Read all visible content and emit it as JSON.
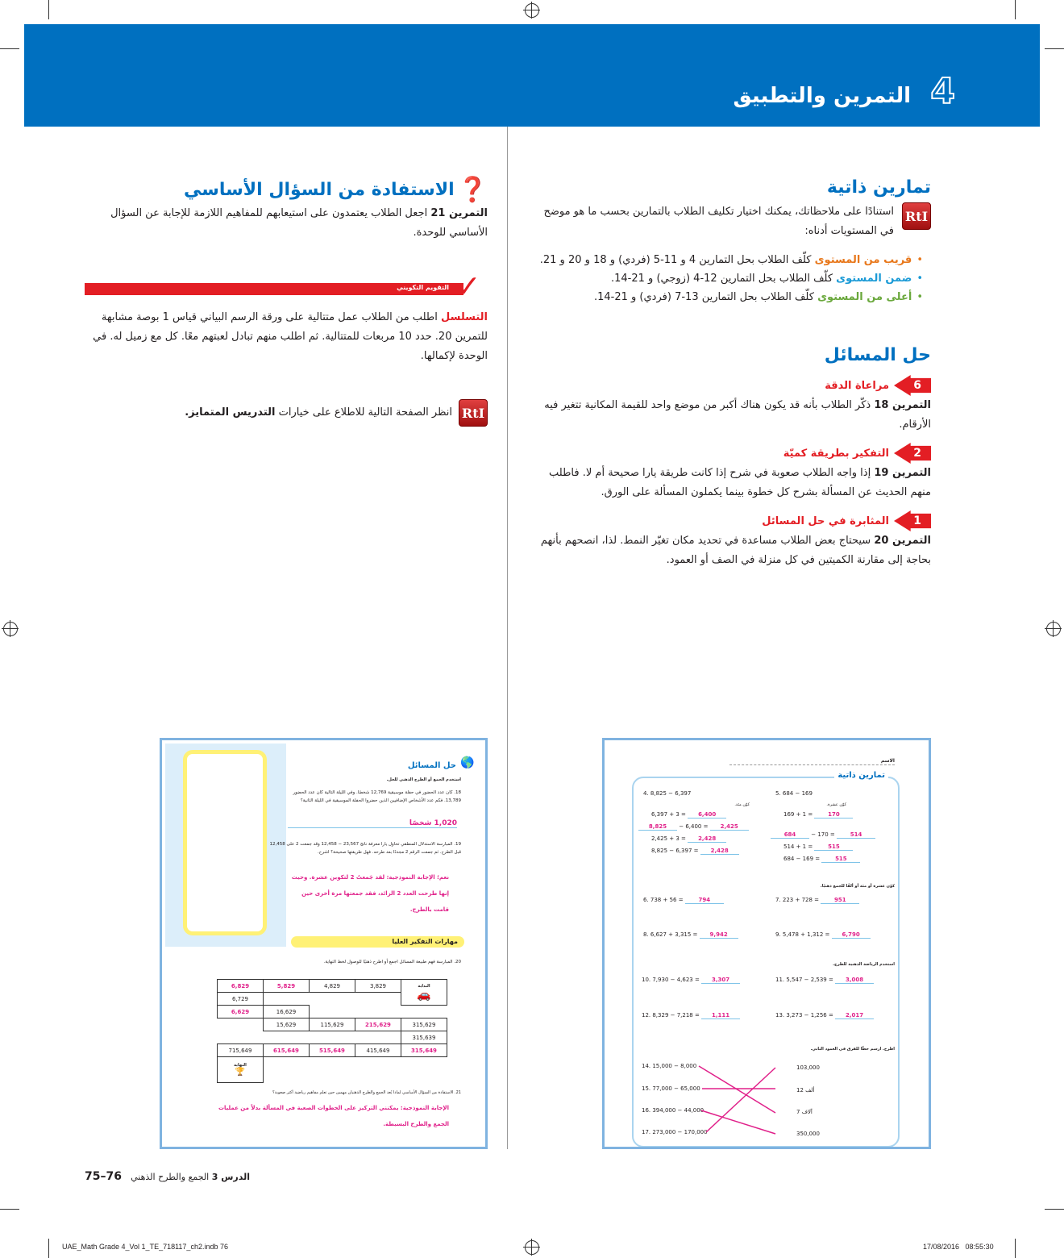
{
  "header": {
    "chapter_number": "4",
    "chapter_title": "التمرين والتطبيق"
  },
  "right": {
    "practice": {
      "title": "تمارين ذاتية",
      "rti": "RtI",
      "intro": "استنادًا على ملاحظاتك، يمكنك اختيار تكليف الطلاب بالتمارين بحسب ما هو موضح في المستويات أدناه:",
      "levels": [
        {
          "label": "قريب من المستوى",
          "text": "كلّف الطلاب بحل التمارين 4 و 11-5 (فردي) و 18 و 20 و 21.",
          "color": "#e8781c"
        },
        {
          "label": "ضمن المستوى",
          "text": "كلّف الطلاب بحل التمارين 12-4 (زوجي) و 21-14.",
          "color": "#1a9ad6"
        },
        {
          "label": "أعلى من المستوى",
          "text": "كلّف الطلاب بحل التمارين 13-7 (فردي) و 21-14.",
          "color": "#6aa83c"
        }
      ]
    },
    "problem_solving": {
      "title": "حل المسائل",
      "items": [
        {
          "num": "6",
          "heading": "مراعاة الدقة",
          "lead": "التمرين 18",
          "text": "ذكّر الطلاب بأنه قد يكون هناك أكبر من موضع واحد للقيمة المكانية تتغير فيه الأرقام."
        },
        {
          "num": "2",
          "heading": "التفكير بطريقة كميّة",
          "lead": "التمرين 19",
          "text": "إذا واجه الطلاب صعوبة في شرح إذا كانت طريقة يارا صحيحة أم لا. فاطلب منهم الحديث عن المسألة بشرح كل خطوة بينما يكملون المسألة على الورق."
        },
        {
          "num": "1",
          "heading": "المثابرة في حل المسائل",
          "lead": "التمرين 20",
          "text": "سيحتاج بعض الطلاب مساعدة في تحديد مكان تغيّر النمط. لذا، انصحهم بأنهم بحاجة إلى مقارنة الكميتين في كل منزلة في الصف أو العمود."
        }
      ]
    }
  },
  "left": {
    "essential": {
      "title": "الاستفادة من السؤال الأساسي",
      "lead": "التمرين 21",
      "text": "اجعل الطلاب يعتمدون على استيعابهم للمفاهيم اللازمة للإجابة عن السؤال الأساسي للوحدة."
    },
    "formative": {
      "banner": "التقويم التكويني",
      "lead": "التسلسل",
      "text": "اطلب من الطلاب عمل متتالية على ورقة الرسم البياني قياس 1 بوصة مشابهة للتمرين 20. حدد 10 مربعات للمتتالية. ثم اطلب منهم تبادل لعبتهم معًا. كل مع زميل له. في الوحدة لإكمالها."
    },
    "rti_note": {
      "rti": "RtI",
      "text": "انظر الصفحة التالية للاطلاع على خيارات",
      "bold": "التدريس المتمايز."
    }
  },
  "thumb_right": {
    "name_label": "الاسم",
    "title": "تمارين ذاتية",
    "p4": "4. 8,825 − 6,397",
    "p4_hint": "كوّن مئة.",
    "p4_rows": [
      [
        "6,397 + 3 =",
        "6,400"
      ],
      [
        "− 6,400 =",
        "8,825",
        "2,425"
      ],
      [
        "2,425 + 3 =",
        "2,428"
      ],
      [
        "8,825 − 6,397 =",
        "2,428"
      ]
    ],
    "p5": "5. 684 − 169",
    "p5_hint": "كوّن عشرة.",
    "p5_rows": [
      [
        "169 + 1 =",
        "170"
      ],
      [
        "− 170 =",
        "684",
        "514"
      ],
      [
        "514 + 1 =",
        "515"
      ],
      [
        "684 − 169 =",
        "515"
      ]
    ],
    "mental_hint": "كوّن عشرة أو مئة أو ألفًا للجمع ذهنيًا.",
    "sums": [
      [
        "6. 738 + 56 =",
        "794"
      ],
      [
        "7. 223 + 728 =",
        "951"
      ],
      [
        "8. 6,627 + 3,315 =",
        "9,942"
      ],
      [
        "9. 5,478 + 1,312 =",
        "6,790"
      ]
    ],
    "sub_hint": "استخدم الرياضة الذهنية للطرح.",
    "subs": [
      [
        "10. 7,930 − 4,623 =",
        "3,307"
      ],
      [
        "11. 5,547 − 2,539 =",
        "3,008"
      ],
      [
        "12. 8,329 − 7,218 =",
        "1,111"
      ],
      [
        "13. 3,273 − 1,256 =",
        "2,017"
      ]
    ],
    "match_hint": "اطرح. ارسم خطًا للفرق في العمود الثاني.",
    "match_left": [
      "14. 15,000 − 8,000",
      "15. 77,000 − 65,000",
      "16. 394,000 − 44,000",
      "17. 273,000 − 170,000"
    ],
    "match_right": [
      "103,000",
      "12 ألف",
      "7 آلاف",
      "350,000"
    ]
  },
  "thumb_left": {
    "title": "حل المسائل",
    "instr": "استخدم الجمع أو الطرح الذهني للحل.",
    "q18": "18. كان عدد الحضور في حفلة موسيقية 12,769 شخصًا. وفي الليلة التالية كان عدد الحضور 13,789. فكم عدد الأشخاص الإضافيين الذين حضروا الحفلة الموسيقية في الليلة الثانية؟",
    "a18": "1,020 شخصًا",
    "q19": "19. المبارسة الاستدلال المنطقي تحاول يارا معرفة ناتج 23,567 − 12,458 وقد جمعت 2 على 12,458 قبل الطرح. ثم جمعت الرقم 2 مجددًا بعد طرحه. فهل طريقتها صحيحة؟ اشرح.",
    "a19": "نعم؛ الإجابة النموذجية: لقد جَمعتُ 2 لتكوين عشرة. وحيث إنها طرحت العدد 2 الزائد، فقد جمعتها مرة أخرى حين قامت بالطرح.",
    "hots": "مهارات التفكير العليا",
    "q20": "20. المبارسة فهم طبيعة المسائل اجمع أو اطرح ذهنيًا للوصول لخط النهاية.",
    "grid": [
      [
        "6,829",
        "5,829",
        "4,829",
        "3,829",
        "البداية"
      ],
      [
        "6,729",
        "",
        "",
        "",
        ""
      ],
      [
        "6,629",
        "16,629",
        "",
        "",
        ""
      ],
      [
        "",
        "15,629",
        "115,629",
        "215,629",
        "315,629"
      ],
      [
        "",
        "",
        "",
        "",
        "315,639"
      ],
      [
        "715,649",
        "615,649",
        "515,649",
        "415,649",
        "315,649"
      ],
      [
        "النهاية",
        "",
        "",
        "",
        ""
      ]
    ],
    "grid_answers": [
      "6,829",
      "5,829",
      "6,629",
      "215,629",
      "615,649",
      "515,649",
      "315,649"
    ],
    "q21": "21. الاستفادة من السؤال الأساسي لماذا يُعد الجمع والطرح الذهنيان مهمين حين تعلم مفاهيم رياضية أكثر صعوبة؟",
    "a21": "الإجابة النموذجية: يمكنني التركيز على الخطوات الصعبة في المسألة بدلاً من عمليات الجمع والطرح البسيطة."
  },
  "footer": {
    "page_range": "75–76",
    "lesson": "الدرس 3",
    "lesson_title": "الجمع والطرح الذهني",
    "file": "UAE_Math Grade 4_Vol 1_TE_718117_ch2.indb   76",
    "date": "17/08/2016   08:55:30"
  },
  "colors": {
    "blue": "#0070c0",
    "red": "#e31e24",
    "answer": "#e0218a"
  }
}
